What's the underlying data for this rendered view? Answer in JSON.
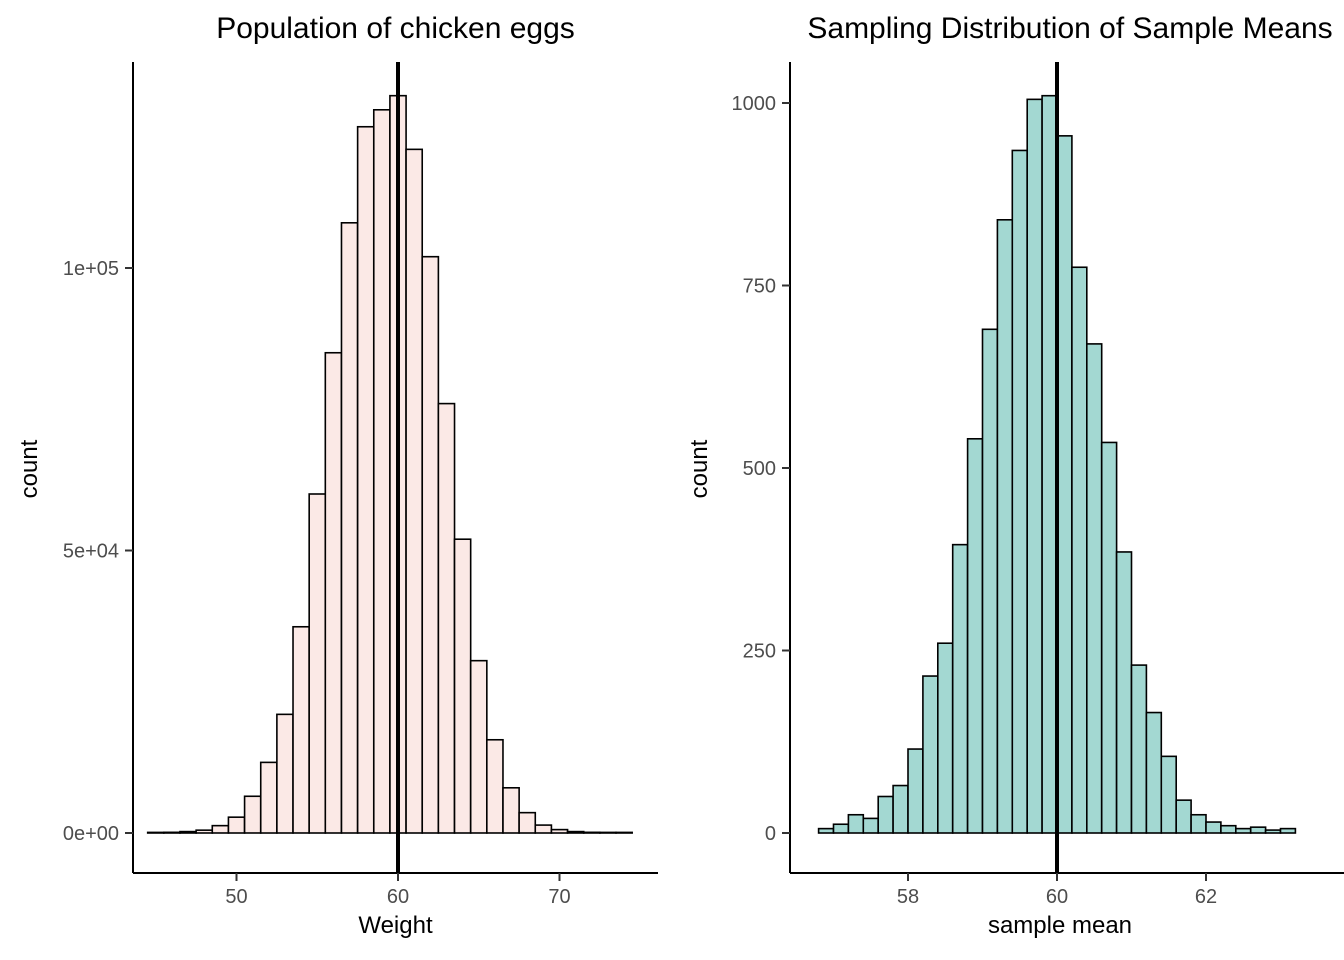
{
  "page": {
    "background": "#ffffff"
  },
  "chart_data": [
    {
      "type": "bar",
      "subtype": "histogram",
      "title": "Population of chicken eggs",
      "xlabel": "Weight",
      "ylabel": "count",
      "grid": "off",
      "legend": "none",
      "bar_fill": "#fbe9e6",
      "bar_stroke": "#000000",
      "mean_line_x": 60,
      "bin_width": 1,
      "xlim": [
        43.5,
        76.1
      ],
      "ylim": [
        0,
        136500
      ],
      "x_ticks": [
        {
          "value": 50,
          "label": "50"
        },
        {
          "value": 60,
          "label": "60"
        },
        {
          "value": 70,
          "label": "70"
        }
      ],
      "y_ticks": [
        {
          "value": 0,
          "label": "0e+00"
        },
        {
          "value": 50000,
          "label": "5e+04"
        },
        {
          "value": 100000,
          "label": "1e+05"
        }
      ],
      "bin_centers": [
        45,
        46,
        47,
        48,
        49,
        50,
        51,
        52,
        53,
        54,
        55,
        56,
        57,
        58,
        59,
        60,
        61,
        62,
        63,
        64,
        65,
        66,
        67,
        68,
        69,
        70,
        71,
        72,
        73,
        74
      ],
      "counts": [
        60,
        120,
        250,
        500,
        1300,
        2800,
        6500,
        12500,
        21000,
        36500,
        60000,
        85000,
        108000,
        125000,
        128000,
        130500,
        121000,
        102000,
        76000,
        52000,
        30500,
        16500,
        8000,
        3600,
        1400,
        600,
        250,
        120,
        60,
        30
      ]
    },
    {
      "type": "bar",
      "subtype": "histogram",
      "title": "Sampling Distribution of Sample Means",
      "xlabel": "sample mean",
      "ylabel": "count",
      "grid": "off",
      "legend": "none",
      "bar_fill": "#a3d8d2",
      "bar_stroke": "#000000",
      "mean_line_x": 60,
      "bin_width": 0.2,
      "xlim": [
        56.4,
        63.9
      ],
      "ylim": [
        0,
        1056
      ],
      "x_ticks": [
        {
          "value": 58,
          "label": "58"
        },
        {
          "value": 60,
          "label": "60"
        },
        {
          "value": 62,
          "label": "62"
        }
      ],
      "y_ticks": [
        {
          "value": 0,
          "label": "0"
        },
        {
          "value": 250,
          "label": "250"
        },
        {
          "value": 500,
          "label": "500"
        },
        {
          "value": 750,
          "label": "750"
        },
        {
          "value": 1000,
          "label": "1000"
        }
      ],
      "bin_centers": [
        56.9,
        57.1,
        57.3,
        57.5,
        57.7,
        57.9,
        58.1,
        58.3,
        58.5,
        58.7,
        58.9,
        59.1,
        59.3,
        59.5,
        59.7,
        59.9,
        60.1,
        60.3,
        60.5,
        60.7,
        60.9,
        61.1,
        61.3,
        61.5,
        61.7,
        61.9,
        62.1,
        62.3,
        62.5,
        62.7,
        62.9,
        63.1
      ],
      "counts": [
        6,
        12,
        25,
        20,
        50,
        65,
        115,
        215,
        260,
        395,
        540,
        690,
        840,
        935,
        1005,
        1010,
        955,
        775,
        670,
        535,
        385,
        230,
        165,
        105,
        45,
        25,
        15,
        10,
        6,
        8,
        4,
        6
      ]
    }
  ],
  "colors": {
    "axis": "#000000",
    "tick_mark": "#333333",
    "tick_label": "#4d4d4d",
    "mean_line": "#000000"
  }
}
